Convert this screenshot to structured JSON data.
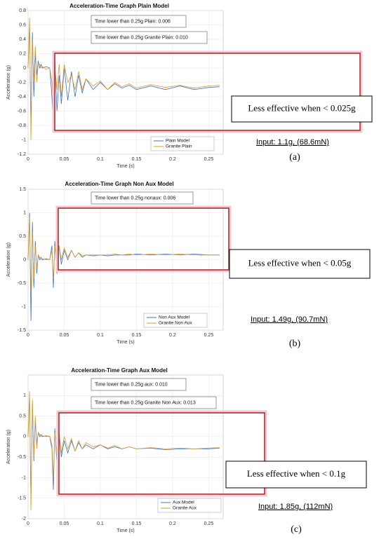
{
  "chart_data": [
    {
      "type": "line",
      "title": "Acceleration-Time Graph Plain Model",
      "xlabel": "Time (s)",
      "ylabel": "Acceleration (g)",
      "annotations": [
        "Time lower than 0.25g Plain: 0.006",
        "Time lower than 0.25g Granite Plain: 0.010"
      ],
      "callout": "Less effective when < 0.025g",
      "input_label": "Input: 1.1g, (68.6mN)",
      "panel_label": "(a)",
      "x": [
        0,
        0.002,
        0.004,
        0.006,
        0.008,
        0.01,
        0.012,
        0.014,
        0.016,
        0.018,
        0.02,
        0.025,
        0.03,
        0.033,
        0.035,
        0.037,
        0.04,
        0.043,
        0.046,
        0.05,
        0.055,
        0.06,
        0.065,
        0.07,
        0.075,
        0.08,
        0.09,
        0.1,
        0.11,
        0.12,
        0.13,
        0.14,
        0.15,
        0.17,
        0.19,
        0.21,
        0.23,
        0.25,
        0.265
      ],
      "series": [
        {
          "name": "Plain Model",
          "color": "#3d6fc7",
          "values": [
            0,
            0.6,
            -0.8,
            0.5,
            -0.4,
            0.2,
            -0.1,
            0.1,
            0,
            0.05,
            0,
            0.02,
            0,
            -0.4,
            -0.85,
            0.1,
            -0.6,
            -0.1,
            -0.5,
            0,
            -0.45,
            -0.05,
            -0.4,
            -0.1,
            -0.35,
            -0.15,
            -0.3,
            -0.2,
            -0.3,
            -0.22,
            -0.28,
            -0.24,
            -0.3,
            -0.25,
            -0.3,
            -0.25,
            -0.3,
            -0.27,
            -0.26
          ]
        },
        {
          "name": "Granite Plain",
          "color": "#d99a2b",
          "values": [
            0,
            0.7,
            -1.0,
            0.4,
            -0.2,
            0.3,
            -0.2,
            0.05,
            0.05,
            0,
            0.02,
            -0.02,
            0,
            -0.2,
            -0.6,
            0.05,
            -0.3,
            0.05,
            -0.4,
            0.05,
            -0.2,
            -0.1,
            -0.3,
            -0.05,
            -0.3,
            -0.15,
            -0.25,
            -0.18,
            -0.3,
            -0.2,
            -0.26,
            -0.22,
            -0.28,
            -0.23,
            -0.27,
            -0.24,
            -0.28,
            -0.25,
            -0.24
          ]
        }
      ],
      "xlim": [
        0,
        0.27
      ],
      "xticks": [
        0,
        0.05,
        0.1,
        0.15,
        0.2,
        0.25
      ],
      "ylim": [
        -1.2,
        0.8
      ],
      "yticks": [
        -1.2,
        -1,
        -0.8,
        -0.6,
        -0.4,
        -0.2,
        0,
        0.2,
        0.4,
        0.6,
        0.8
      ],
      "grid": true,
      "legend": "lower right"
    },
    {
      "type": "line",
      "title": "Acceleration-Time Graph Non Aux Model",
      "xlabel": "Time (s)",
      "ylabel": "Acceleration (g)",
      "annotations": [
        "Time lower than 0.25g nonaux: 0.006"
      ],
      "callout": "Less effective when < 0.05g",
      "input_label": "Input: 1.49g, (90.7mN)",
      "panel_label": "(b)",
      "x": [
        0,
        0.002,
        0.004,
        0.006,
        0.008,
        0.01,
        0.012,
        0.014,
        0.016,
        0.018,
        0.02,
        0.025,
        0.03,
        0.033,
        0.035,
        0.037,
        0.04,
        0.043,
        0.046,
        0.05,
        0.055,
        0.06,
        0.065,
        0.07,
        0.075,
        0.08,
        0.09,
        0.1,
        0.11,
        0.12,
        0.13,
        0.14,
        0.15,
        0.17,
        0.19,
        0.21,
        0.23,
        0.25,
        0.265
      ],
      "series": [
        {
          "name": "Non Aux Model",
          "color": "#3d6fc7",
          "values": [
            0,
            1.0,
            -1.3,
            0.8,
            -0.6,
            0.4,
            -0.3,
            0.1,
            0,
            0.05,
            0,
            0.02,
            0,
            0.3,
            -0.6,
            0.4,
            -0.3,
            0.3,
            -0.1,
            0.2,
            0,
            0.2,
            0.05,
            0.15,
            0.05,
            0.1,
            0.08,
            0.1,
            0.08,
            0.1,
            0.1,
            0.1,
            0.12,
            0.1,
            0.12,
            0.1,
            0.12,
            0.1,
            0.1
          ]
        },
        {
          "name": "Granite Non Aux",
          "color": "#d99a2b",
          "values": [
            0,
            0.9,
            -0.7,
            0.6,
            -0.4,
            0.3,
            -0.2,
            0.1,
            0.05,
            0,
            0.02,
            0,
            0.01,
            0.2,
            -0.4,
            0.3,
            -0.2,
            0.3,
            0,
            0.25,
            0.05,
            0.2,
            0.05,
            0.15,
            0.08,
            0.1,
            0.1,
            0.1,
            0.1,
            0.12,
            0.1,
            0.12,
            0.1,
            0.12,
            0.1,
            0.12,
            0.1,
            0.1,
            0.1
          ]
        }
      ],
      "xlim": [
        0,
        0.27
      ],
      "xticks": [
        0,
        0.05,
        0.1,
        0.15,
        0.2,
        0.25
      ],
      "ylim": [
        -1.5,
        1.5
      ],
      "yticks": [
        -1.5,
        -1,
        -0.5,
        0,
        0.5,
        1,
        1.5
      ],
      "grid": true,
      "legend": "lower right"
    },
    {
      "type": "line",
      "title": "Acceleration-Time Graph Aux Model",
      "xlabel": "Time (s)",
      "ylabel": "Acceleration (g)",
      "annotations": [
        "Time lower than 0.25g aux: 0.010",
        "Time lower than 0.25g Granite Non Aux: 0.013"
      ],
      "callout": "Less effective when < 0.1g",
      "input_label": "Input: 1.85g, (112mN)",
      "panel_label": "(c)",
      "x": [
        0,
        0.002,
        0.004,
        0.006,
        0.008,
        0.01,
        0.012,
        0.014,
        0.016,
        0.018,
        0.02,
        0.025,
        0.03,
        0.033,
        0.035,
        0.037,
        0.04,
        0.043,
        0.046,
        0.05,
        0.055,
        0.06,
        0.065,
        0.07,
        0.075,
        0.08,
        0.09,
        0.1,
        0.11,
        0.12,
        0.13,
        0.14,
        0.15,
        0.17,
        0.19,
        0.21,
        0.23,
        0.25,
        0.265
      ],
      "series": [
        {
          "name": "Aux Model",
          "color": "#3d6fc7",
          "values": [
            0,
            1.0,
            -1.5,
            0.8,
            -0.6,
            0.4,
            -0.2,
            0.1,
            0,
            0.05,
            0,
            0.02,
            0,
            -0.3,
            -1.3,
            0.2,
            -0.7,
            0,
            -0.5,
            -0.1,
            -0.4,
            -0.1,
            -0.35,
            -0.15,
            -0.3,
            -0.2,
            -0.3,
            -0.2,
            -0.3,
            -0.25,
            -0.3,
            -0.25,
            -0.3,
            -0.28,
            -0.32,
            -0.3,
            -0.3,
            -0.3,
            -0.28
          ]
        },
        {
          "name": "Granite Aux",
          "color": "#d99a2b",
          "values": [
            0,
            1.1,
            -1.8,
            0.9,
            -0.5,
            0.5,
            -0.3,
            0.1,
            0.05,
            0,
            0.02,
            0,
            0.01,
            -0.2,
            -1.0,
            0.1,
            -0.5,
            0.1,
            -0.4,
            0,
            -0.3,
            -0.05,
            -0.35,
            -0.1,
            -0.3,
            -0.15,
            -0.25,
            -0.2,
            -0.28,
            -0.22,
            -0.3,
            -0.25,
            -0.3,
            -0.27,
            -0.3,
            -0.28,
            -0.3,
            -0.28,
            -0.27
          ]
        }
      ],
      "xlim": [
        0,
        0.27
      ],
      "xticks": [
        0,
        0.05,
        0.1,
        0.15,
        0.2,
        0.25
      ],
      "ylim": [
        -2,
        1.5
      ],
      "yticks": [
        -2,
        -1.5,
        -1,
        -0.5,
        0,
        0.5,
        1
      ],
      "grid": true,
      "legend": "lower right"
    }
  ]
}
